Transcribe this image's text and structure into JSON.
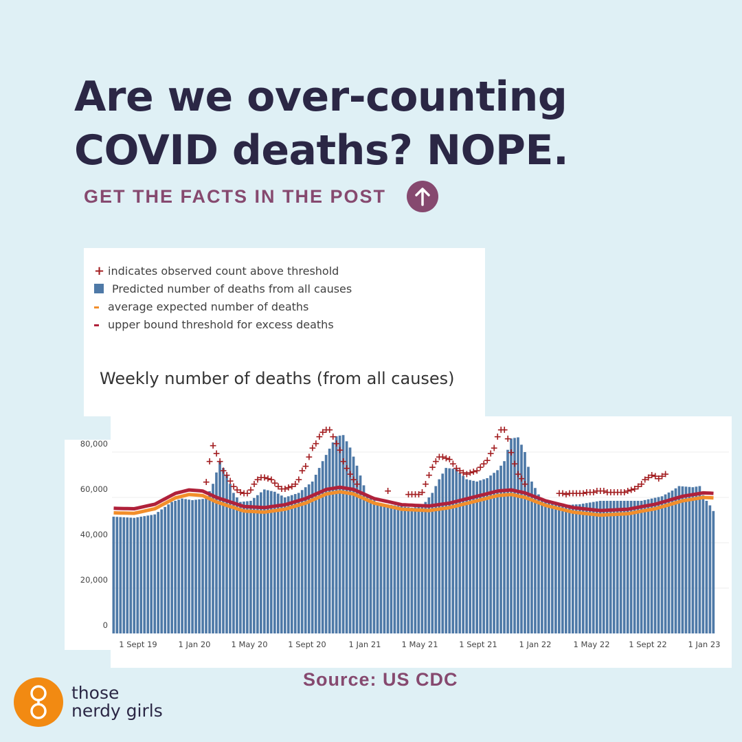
{
  "headline": {
    "line1": "Are we over-counting",
    "line2": "COVID deaths? NOPE."
  },
  "cta": {
    "label": "GET THE FACTS IN THE POST",
    "icon": "arrow-up-icon"
  },
  "source": "Source: US CDC",
  "logo": {
    "line1": "those",
    "line2": "nerdy girls",
    "icon": "glasses-icon"
  },
  "colors": {
    "background": "#dff0f5",
    "headline": "#2b2745",
    "accent": "#86496f",
    "bars": "#4e79a7",
    "expected": "#f28e2b",
    "threshold": "#b0213a",
    "observed_plus": "#a31f22",
    "logo": "#f28a12"
  },
  "chart_data": {
    "type": "bar",
    "title": "Weekly number of deaths (from all causes)",
    "legend": [
      {
        "marker": "+",
        "label": "indicates observed count above threshold"
      },
      {
        "marker": "square",
        "label": "Predicted number of deaths from all causes"
      },
      {
        "marker": "dash",
        "label": "average expected number of deaths"
      },
      {
        "marker": "dash",
        "label": "upper bound threshold for excess deaths"
      }
    ],
    "y_ticks": [
      "0",
      "20,000",
      "40,000",
      "60,000",
      "80,000"
    ],
    "ylim": [
      0,
      80000
    ],
    "x_ticks": [
      "1 Sept 19",
      "1 Jan 20",
      "1 May 20",
      "1 Sept 20",
      "1 Jan 21",
      "1 May 21",
      "1 Sept 21",
      "1 Jan 22",
      "1 May 22",
      "1 Sept 22",
      "1 Jan 23"
    ],
    "weeks": 176,
    "start_label": "1 Sept 19",
    "weekly_deaths_keypoints": [
      [
        0,
        51500
      ],
      [
        6,
        51000
      ],
      [
        12,
        52500
      ],
      [
        17,
        58000
      ],
      [
        20,
        59500
      ],
      [
        23,
        58800
      ],
      [
        27,
        59500
      ],
      [
        29,
        66000
      ],
      [
        31,
        76000
      ],
      [
        33,
        70000
      ],
      [
        35,
        62000
      ],
      [
        37,
        58000
      ],
      [
        40,
        58500
      ],
      [
        42,
        61000
      ],
      [
        44,
        63500
      ],
      [
        47,
        62500
      ],
      [
        50,
        60000
      ],
      [
        54,
        62000
      ],
      [
        58,
        67000
      ],
      [
        61,
        76000
      ],
      [
        65,
        87000
      ],
      [
        67,
        87500
      ],
      [
        69,
        82000
      ],
      [
        71,
        74000
      ],
      [
        74,
        61000
      ],
      [
        77,
        57500
      ],
      [
        82,
        56500
      ],
      [
        87,
        55500
      ],
      [
        90,
        56000
      ],
      [
        93,
        62000
      ],
      [
        95,
        68000
      ],
      [
        97,
        73000
      ],
      [
        100,
        72500
      ],
      [
        103,
        68000
      ],
      [
        106,
        67000
      ],
      [
        109,
        68500
      ],
      [
        112,
        72000
      ],
      [
        114,
        76000
      ],
      [
        116,
        86000
      ],
      [
        118,
        86500
      ],
      [
        120,
        80000
      ],
      [
        122,
        67000
      ],
      [
        125,
        58500
      ],
      [
        130,
        56500
      ],
      [
        136,
        57000
      ],
      [
        142,
        58500
      ],
      [
        148,
        58500
      ],
      [
        154,
        58500
      ],
      [
        160,
        60500
      ],
      [
        163,
        63000
      ],
      [
        165,
        65000
      ],
      [
        169,
        64500
      ],
      [
        171,
        65000
      ],
      [
        172,
        61000
      ],
      [
        173,
        58500
      ],
      [
        174,
        56500
      ],
      [
        175,
        54000
      ]
    ],
    "expected_keypoints": [
      [
        0,
        53200
      ],
      [
        6,
        53000
      ],
      [
        12,
        55000
      ],
      [
        18,
        59800
      ],
      [
        22,
        61300
      ],
      [
        26,
        60800
      ],
      [
        30,
        58000
      ],
      [
        38,
        54000
      ],
      [
        44,
        53500
      ],
      [
        50,
        54800
      ],
      [
        56,
        57500
      ],
      [
        62,
        61500
      ],
      [
        66,
        62500
      ],
      [
        70,
        61500
      ],
      [
        76,
        57500
      ],
      [
        84,
        54800
      ],
      [
        92,
        54200
      ],
      [
        98,
        55500
      ],
      [
        106,
        58500
      ],
      [
        112,
        60800
      ],
      [
        116,
        61300
      ],
      [
        120,
        60000
      ],
      [
        126,
        56500
      ],
      [
        134,
        53500
      ],
      [
        142,
        52200
      ],
      [
        150,
        52800
      ],
      [
        158,
        55000
      ],
      [
        166,
        58500
      ],
      [
        172,
        60000
      ],
      [
        175,
        59800
      ]
    ],
    "threshold_offset": 2000,
    "observed_above_threshold_keypoints": [
      [
        27,
        67000
      ],
      [
        28,
        76000
      ],
      [
        29,
        83000
      ],
      [
        30,
        79500
      ],
      [
        31,
        76000
      ],
      [
        32,
        72000
      ],
      [
        33,
        70000
      ],
      [
        34,
        67500
      ],
      [
        35,
        65000
      ],
      [
        36,
        63500
      ],
      [
        37,
        62500
      ],
      [
        38,
        62000
      ],
      [
        39,
        62000
      ],
      [
        40,
        63500
      ],
      [
        41,
        66000
      ],
      [
        42,
        68000
      ],
      [
        43,
        69000
      ],
      [
        44,
        69000
      ],
      [
        45,
        68500
      ],
      [
        46,
        68000
      ],
      [
        47,
        66500
      ],
      [
        48,
        65000
      ],
      [
        49,
        64000
      ],
      [
        50,
        64000
      ],
      [
        51,
        64500
      ],
      [
        52,
        65000
      ],
      [
        53,
        66000
      ],
      [
        54,
        68000
      ],
      [
        55,
        72000
      ],
      [
        56,
        74000
      ],
      [
        57,
        78000
      ],
      [
        58,
        82000
      ],
      [
        59,
        84000
      ],
      [
        60,
        87000
      ],
      [
        61,
        89000
      ],
      [
        62,
        90000
      ],
      [
        63,
        90000
      ],
      [
        64,
        87000
      ],
      [
        65,
        84000
      ],
      [
        66,
        81000
      ],
      [
        67,
        76000
      ],
      [
        68,
        73000
      ],
      [
        69,
        70500
      ],
      [
        70,
        68000
      ],
      [
        71,
        66000
      ],
      [
        80,
        63000
      ],
      [
        86,
        61500
      ],
      [
        87,
        61500
      ],
      [
        88,
        61500
      ],
      [
        89,
        61500
      ],
      [
        90,
        62500
      ],
      [
        91,
        66000
      ],
      [
        92,
        70000
      ],
      [
        93,
        73500
      ],
      [
        94,
        76000
      ],
      [
        95,
        78000
      ],
      [
        96,
        78000
      ],
      [
        97,
        77500
      ],
      [
        98,
        77000
      ],
      [
        99,
        75000
      ],
      [
        100,
        73000
      ],
      [
        101,
        72000
      ],
      [
        102,
        71000
      ],
      [
        103,
        70500
      ],
      [
        104,
        71000
      ],
      [
        105,
        71500
      ],
      [
        106,
        72000
      ],
      [
        107,
        73500
      ],
      [
        108,
        75000
      ],
      [
        109,
        76500
      ],
      [
        110,
        79500
      ],
      [
        111,
        82000
      ],
      [
        112,
        87000
      ],
      [
        113,
        90000
      ],
      [
        114,
        90000
      ],
      [
        115,
        86000
      ],
      [
        116,
        80000
      ],
      [
        117,
        75000
      ],
      [
        118,
        70500
      ],
      [
        119,
        68500
      ],
      [
        120,
        66000
      ],
      [
        130,
        62000
      ],
      [
        131,
        62000
      ],
      [
        132,
        61500
      ],
      [
        133,
        62000
      ],
      [
        134,
        62000
      ],
      [
        135,
        62000
      ],
      [
        136,
        62000
      ],
      [
        137,
        62000
      ],
      [
        138,
        62500
      ],
      [
        139,
        62500
      ],
      [
        140,
        62500
      ],
      [
        141,
        63000
      ],
      [
        142,
        63000
      ],
      [
        143,
        63000
      ],
      [
        144,
        62500
      ],
      [
        145,
        62500
      ],
      [
        146,
        62500
      ],
      [
        147,
        62500
      ],
      [
        148,
        62500
      ],
      [
        149,
        62500
      ],
      [
        150,
        63000
      ],
      [
        151,
        63500
      ],
      [
        152,
        64000
      ],
      [
        153,
        65000
      ],
      [
        154,
        66000
      ],
      [
        155,
        68000
      ],
      [
        156,
        69000
      ],
      [
        157,
        70000
      ],
      [
        158,
        69500
      ],
      [
        159,
        68500
      ],
      [
        160,
        69500
      ],
      [
        161,
        70500
      ]
    ]
  }
}
